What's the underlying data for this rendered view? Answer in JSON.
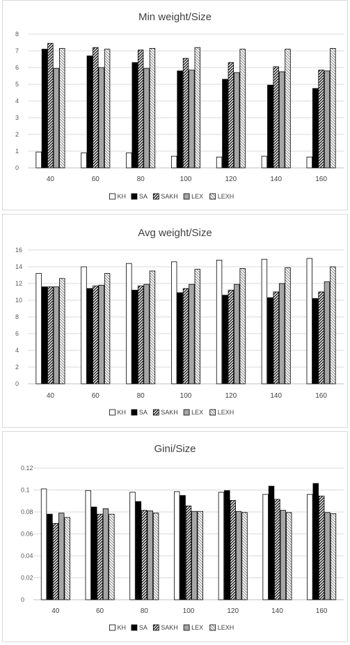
{
  "legend_labels": [
    "KH",
    "SA",
    "SAKH",
    "LEX",
    "LEXH"
  ],
  "chart_data": [
    {
      "type": "bar",
      "title": "Min weight/Size",
      "categories": [
        "40",
        "60",
        "80",
        "100",
        "120",
        "140",
        "160"
      ],
      "ylim": [
        0,
        8
      ],
      "yticks": [
        "0",
        "1",
        "2",
        "3",
        "4",
        "5",
        "6",
        "7",
        "8"
      ],
      "grid": true,
      "legend": "bottom",
      "series": [
        {
          "name": "KH",
          "values": [
            0.95,
            0.9,
            0.9,
            0.7,
            0.65,
            0.7,
            0.65
          ]
        },
        {
          "name": "SA",
          "values": [
            7.1,
            6.7,
            6.3,
            5.8,
            5.3,
            4.95,
            4.75
          ]
        },
        {
          "name": "SAKH",
          "values": [
            7.45,
            7.2,
            7.05,
            6.55,
            6.3,
            6.05,
            5.85
          ]
        },
        {
          "name": "LEX",
          "values": [
            5.95,
            6.0,
            5.95,
            5.85,
            5.7,
            5.75,
            5.8
          ]
        },
        {
          "name": "LEXH",
          "values": [
            7.15,
            7.1,
            7.15,
            7.2,
            7.1,
            7.1,
            7.15
          ]
        }
      ]
    },
    {
      "type": "bar",
      "title": "Avg weight/Size",
      "categories": [
        "40",
        "60",
        "80",
        "100",
        "120",
        "140",
        "160"
      ],
      "ylim": [
        0,
        16
      ],
      "yticks": [
        "0",
        "2",
        "4",
        "6",
        "8",
        "10",
        "12",
        "14",
        "16"
      ],
      "grid": true,
      "legend": "bottom",
      "series": [
        {
          "name": "KH",
          "values": [
            13.2,
            14.0,
            14.4,
            14.6,
            14.8,
            14.9,
            15.0
          ]
        },
        {
          "name": "SA",
          "values": [
            11.6,
            11.4,
            11.2,
            10.9,
            10.6,
            10.3,
            10.2
          ]
        },
        {
          "name": "SAKH",
          "values": [
            11.6,
            11.7,
            11.7,
            11.4,
            11.2,
            11.0,
            11.0
          ]
        },
        {
          "name": "LEX",
          "values": [
            11.6,
            11.8,
            11.9,
            11.9,
            11.9,
            12.0,
            12.2
          ]
        },
        {
          "name": "LEXH",
          "values": [
            12.6,
            13.2,
            13.5,
            13.7,
            13.8,
            13.9,
            14.0
          ]
        }
      ]
    },
    {
      "type": "bar",
      "title": "Gini/Size",
      "categories": [
        "40",
        "60",
        "80",
        "100",
        "120",
        "140",
        "160"
      ],
      "ylim": [
        0,
        0.12
      ],
      "yticks": [
        "0",
        "0.02",
        "0.04",
        "0.06",
        "0.08",
        "0.1",
        "0.12"
      ],
      "grid": true,
      "legend": "bottom",
      "series": [
        {
          "name": "KH",
          "values": [
            0.101,
            0.0995,
            0.098,
            0.0985,
            0.098,
            0.096,
            0.096
          ]
        },
        {
          "name": "SA",
          "values": [
            0.078,
            0.0845,
            0.0895,
            0.095,
            0.0995,
            0.1035,
            0.106
          ]
        },
        {
          "name": "SAKH",
          "values": [
            0.0695,
            0.078,
            0.0815,
            0.0855,
            0.0905,
            0.0915,
            0.0945
          ]
        },
        {
          "name": "LEX",
          "values": [
            0.079,
            0.083,
            0.081,
            0.0805,
            0.0805,
            0.0815,
            0.0795
          ]
        },
        {
          "name": "LEXH",
          "values": [
            0.075,
            0.078,
            0.079,
            0.0805,
            0.0795,
            0.0795,
            0.0785
          ]
        }
      ]
    }
  ]
}
